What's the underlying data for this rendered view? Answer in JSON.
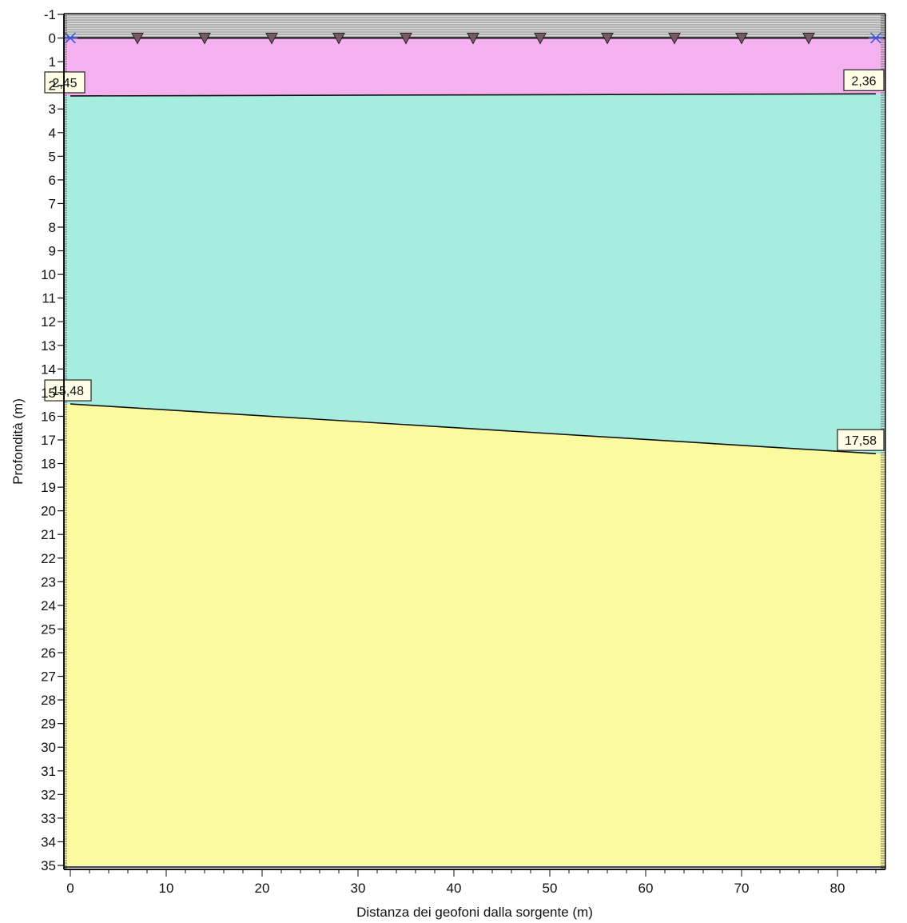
{
  "chart_data": {
    "type": "area",
    "title": "",
    "xlabel": "Distanza dei geofoni dalla sorgente (m)",
    "ylabel": "Profondità (m)",
    "xlim": [
      0,
      84
    ],
    "ylim": [
      -1,
      35
    ],
    "y_inverted": true,
    "x_ticks": [
      0,
      10,
      20,
      30,
      40,
      50,
      60,
      70,
      80
    ],
    "y_ticks": [
      -1,
      0,
      1,
      2,
      3,
      4,
      5,
      6,
      7,
      8,
      9,
      10,
      11,
      12,
      13,
      14,
      15,
      16,
      17,
      18,
      19,
      20,
      21,
      22,
      23,
      24,
      25,
      26,
      27,
      28,
      29,
      30,
      31,
      32,
      33,
      34,
      35
    ],
    "grid": false,
    "layers": [
      {
        "top": [
          [
            0,
            0
          ],
          [
            84,
            0
          ]
        ],
        "bottom": [
          [
            0,
            2.45
          ],
          [
            84,
            2.36
          ]
        ],
        "color": "#f5b0f0"
      },
      {
        "top": [
          [
            0,
            2.45
          ],
          [
            84,
            2.36
          ]
        ],
        "bottom": [
          [
            0,
            15.48
          ],
          [
            84,
            17.58
          ]
        ],
        "color": "#a6ecdf"
      },
      {
        "top": [
          [
            0,
            15.48
          ],
          [
            84,
            17.58
          ]
        ],
        "bottom": [
          [
            0,
            35
          ],
          [
            84,
            35
          ]
        ],
        "color": "#fbfa9e"
      }
    ],
    "interfaces": [
      {
        "x": [
          0,
          84
        ],
        "depth": [
          2.45,
          2.36
        ]
      },
      {
        "x": [
          0,
          84
        ],
        "depth": [
          15.48,
          17.58
        ]
      }
    ],
    "data_labels": [
      {
        "text": "2,45",
        "x": 0,
        "y": 2.45,
        "anchor": "left"
      },
      {
        "text": "2,36",
        "x": 84,
        "y": 2.36,
        "anchor": "right"
      },
      {
        "text": "15,48",
        "x": 0,
        "y": 15.48,
        "anchor": "left"
      },
      {
        "text": "17,58",
        "x": 84,
        "y": 17.58,
        "anchor": "right"
      }
    ],
    "sources": {
      "x": [
        0,
        84
      ],
      "depth": 0,
      "marker": "star",
      "color": "#3a5bd9"
    },
    "geophones": {
      "x": [
        7,
        14,
        21,
        28,
        35,
        42,
        49,
        56,
        63,
        70,
        77
      ],
      "depth": 0,
      "marker": "triangle-down",
      "color": "#7a5a62"
    }
  }
}
